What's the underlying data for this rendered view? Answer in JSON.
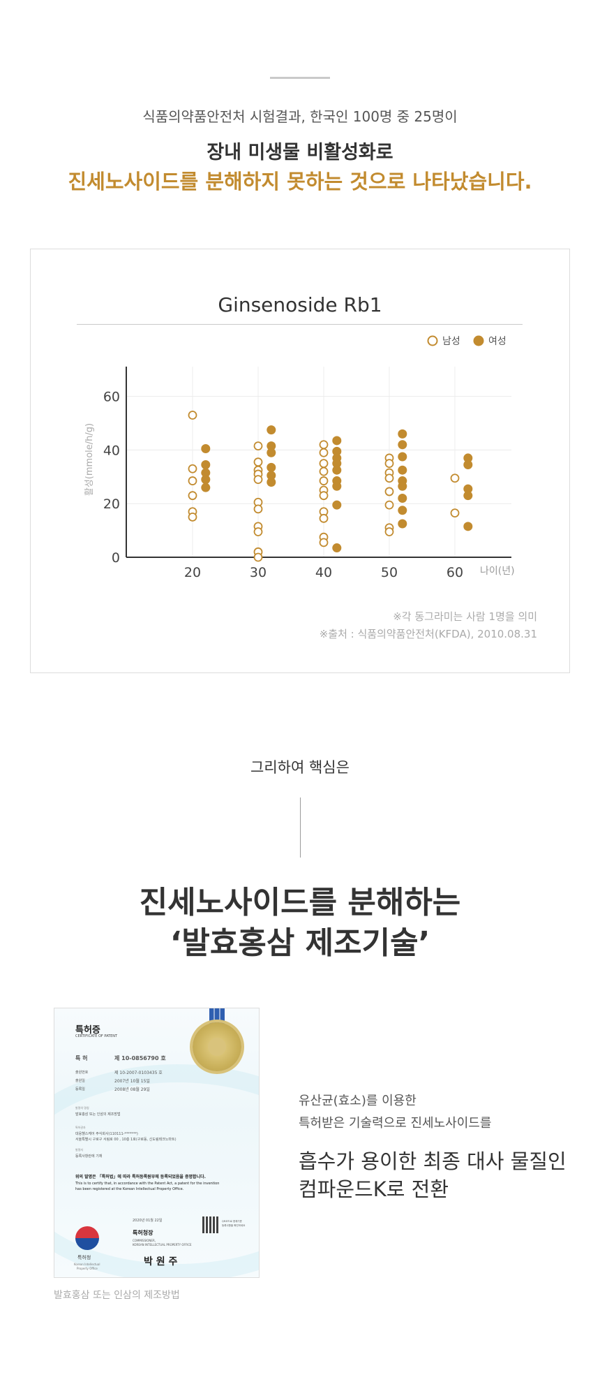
{
  "intro": {
    "sub": "식품의약품안전처 시험결과, 한국인 100명 중 25명이",
    "line1": "장내 미생물 비활성화로",
    "line2": "진세노사이드를 분해하지 못하는 것으로 나타났습니다."
  },
  "chart_data": {
    "type": "scatter",
    "title": "Ginsenoside Rb1",
    "xlabel": "나이(년)",
    "ylabel": "활성(mmole/h/g)",
    "x_ticks": [
      "20",
      "30",
      "40",
      "50",
      "60"
    ],
    "y_ticks": [
      "0",
      "20",
      "40",
      "60"
    ],
    "xlim": [
      10,
      69
    ],
    "ylim": [
      0,
      70
    ],
    "legend": "top-right",
    "series": [
      {
        "name": "남성",
        "style": "hollow",
        "color": "#c28b2f",
        "points": [
          [
            20,
            53
          ],
          [
            20,
            33
          ],
          [
            20,
            28.5
          ],
          [
            20,
            23
          ],
          [
            20,
            17
          ],
          [
            20,
            15
          ],
          [
            30,
            41.5
          ],
          [
            30,
            35.5
          ],
          [
            30,
            32.5
          ],
          [
            30,
            31
          ],
          [
            30,
            29
          ],
          [
            30,
            20.5
          ],
          [
            30,
            18
          ],
          [
            30,
            11.5
          ],
          [
            30,
            9.5
          ],
          [
            30,
            2
          ],
          [
            30,
            0
          ],
          [
            40,
            42
          ],
          [
            40,
            39
          ],
          [
            40,
            35
          ],
          [
            40,
            32
          ],
          [
            40,
            28.5
          ],
          [
            40,
            25
          ],
          [
            40,
            23
          ],
          [
            40,
            17
          ],
          [
            40,
            14.5
          ],
          [
            40,
            7.5
          ],
          [
            40,
            5.5
          ],
          [
            50,
            37
          ],
          [
            50,
            35
          ],
          [
            50,
            31.5
          ],
          [
            50,
            29.5
          ],
          [
            50,
            24.5
          ],
          [
            50,
            19.5
          ],
          [
            50,
            11
          ],
          [
            50,
            9.5
          ],
          [
            60,
            29.5
          ],
          [
            60,
            16.5
          ]
        ]
      },
      {
        "name": "여성",
        "style": "filled",
        "color": "#c28b2f",
        "points": [
          [
            22,
            40.5
          ],
          [
            22,
            34.5
          ],
          [
            22,
            31.5
          ],
          [
            22,
            29
          ],
          [
            22,
            26
          ],
          [
            32,
            47.5
          ],
          [
            32,
            41.5
          ],
          [
            32,
            39
          ],
          [
            32,
            33.5
          ],
          [
            32,
            30.5
          ],
          [
            32,
            28
          ],
          [
            42,
            43.5
          ],
          [
            42,
            39.5
          ],
          [
            42,
            37
          ],
          [
            42,
            35
          ],
          [
            42,
            32.5
          ],
          [
            42,
            28.5
          ],
          [
            42,
            26.5
          ],
          [
            42,
            19.5
          ],
          [
            42,
            3.5
          ],
          [
            52,
            46
          ],
          [
            52,
            42
          ],
          [
            52,
            37.5
          ],
          [
            52,
            32.5
          ],
          [
            52,
            28.5
          ],
          [
            52,
            26.5
          ],
          [
            52,
            22
          ],
          [
            52,
            17.5
          ],
          [
            52,
            12.5
          ],
          [
            62,
            37
          ],
          [
            62,
            34.5
          ],
          [
            62,
            25.5
          ],
          [
            62,
            23
          ],
          [
            62,
            11.5
          ]
        ]
      }
    ]
  },
  "notes": {
    "line1": "※각 동그라미는 사람 1명을 의미",
    "line2": "※출처 : 식품의약품안전처(KFDA), 2010.08.31"
  },
  "mid": {
    "text": "그리하여 핵심은",
    "big1": "진세노사이드를 분해하는",
    "big2": "‘발효홍삼 제조기술’"
  },
  "certificate": {
    "title": "특허증",
    "subtitle": "CERTIFICATE OF PATENT",
    "patent_label": "특 허",
    "patent_no": "제 10-0856790 호",
    "app_label": "출원번호",
    "app_no": "제 10-2007-0103435 호",
    "filing_label": "출원일",
    "filing_date": "2007년 10월 15일",
    "reg_label": "등록일",
    "reg_date": "2008년 08월 29일",
    "invention_label": "발명의 명칭",
    "invention": "발효홍삼 또는 인삼의 제조방법",
    "holder_label": "특허권자",
    "holder": "대웅헬스케어 주식회사(110111-*******)",
    "address": "서울특별시 구로구 서림로 00 , 10층 1호(구로동, 신도림테크노마트)",
    "inventor_label": "발명자",
    "inventor": "등록사항란에 기재",
    "statement_kr": "위의 발명은 「특허법」에 따라 특허등록원부에 등록되었음을 증명합니다.",
    "statement_en1": "This is to certify that, in accordance with the Patent Act, a patent for the invention",
    "statement_en2": "has been registered at the Korean Intellectual Property Office.",
    "date": "2020년 01월 22일",
    "office": "특허청장",
    "office_en1": "COMMISSIONER,",
    "office_en2": "KOREAN INTELLECTUAL PROPERTY OFFICE",
    "signature": "박 원 주",
    "logo_text": "특허청",
    "logo_en1": "Korean Intellectual",
    "logo_en2": "Property Office",
    "qr_note1": "QR코드로 현재기준",
    "qr_note2": "등록사항을 확인하세요"
  },
  "caption": "발효홍삼 또는 인삼의 제조방법",
  "description": {
    "line1": "유산균(효소)를 이용한",
    "line2": "특허받은 기술력으로 진세노사이드를",
    "line3": "흡수가 용이한 최종 대사 물질인",
    "line4": "컴파운드K로 전환"
  }
}
